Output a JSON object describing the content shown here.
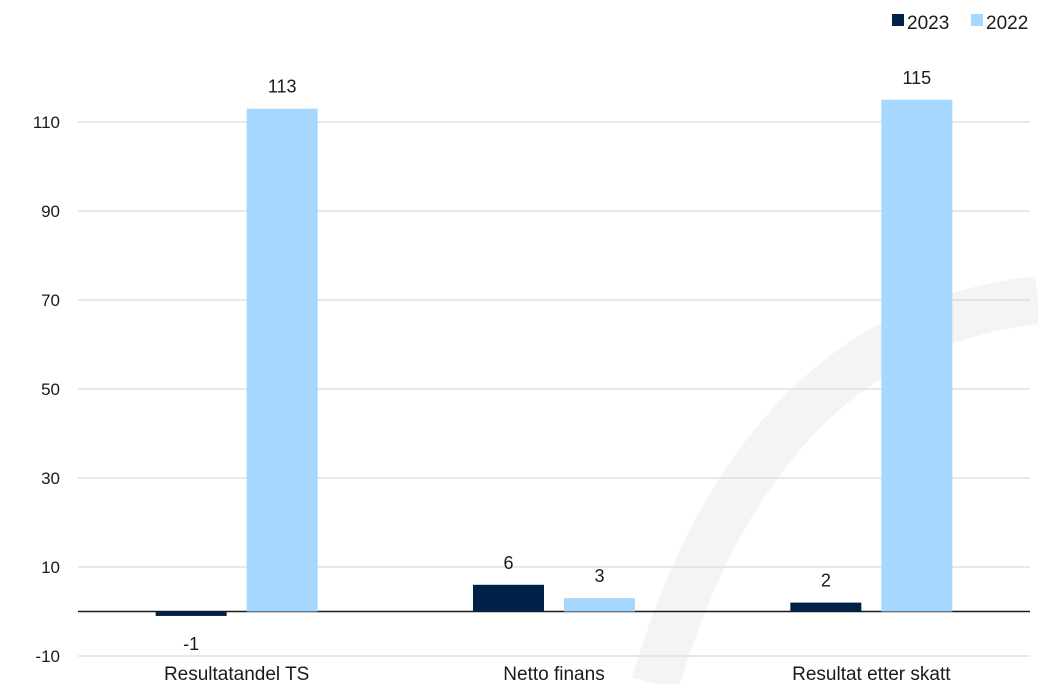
{
  "chart_data": {
    "type": "bar",
    "categories": [
      "Resultatandel TS",
      "Netto finans",
      "Resultat etter skatt"
    ],
    "series": [
      {
        "name": "2023",
        "values": [
          -1,
          6,
          2
        ],
        "color": "#002147"
      },
      {
        "name": "2022",
        "values": [
          113,
          3,
          115
        ],
        "color": "#a6d8ff"
      }
    ],
    "data_labels": [
      [
        "-1",
        "6",
        "2"
      ],
      [
        "113",
        "3",
        "115"
      ]
    ],
    "title": "",
    "xlabel": "",
    "ylabel": "",
    "ylim": [
      -10,
      120
    ],
    "yticks": [
      -10,
      10,
      30,
      50,
      70,
      90,
      110
    ],
    "grid": true,
    "legend_position": "top-right",
    "watermark_color": "#f4f4f4"
  }
}
